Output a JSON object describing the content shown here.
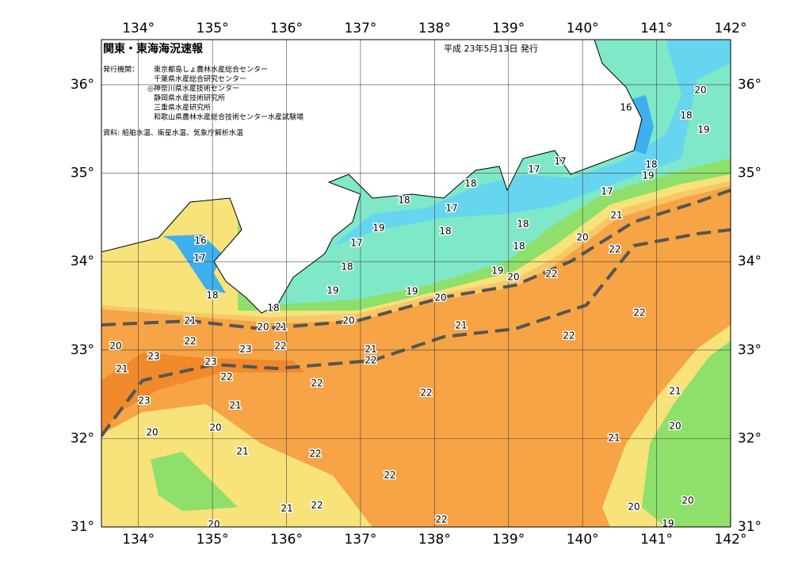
{
  "header": {
    "title": "関東・東海海況速報",
    "date": "平成 23年5月13日 発行",
    "issuer_label": "発行機関：",
    "issuers": [
      "東京都島しょ農林水産総合センター",
      "千葉県水産総合研究センター",
      "◎神奈川県水産技術センター",
      "静岡県水産技術研究所",
      "三重県水産研究所",
      "和歌山県農林水産総合技術センター水産試験場"
    ],
    "source": "資料: 船舶水温、衛星水温、気象庁解析水温"
  },
  "map": {
    "lon_lim": [
      133.5,
      142
    ],
    "lat_lim": [
      31,
      36.51
    ],
    "lon_ticks": [
      {
        "value": 134,
        "label": "134°"
      },
      {
        "value": 135,
        "label": "135°"
      },
      {
        "value": 136,
        "label": "136°"
      },
      {
        "value": 137,
        "label": "137°"
      },
      {
        "value": 138,
        "label": "138°"
      },
      {
        "value": 139,
        "label": "139°"
      },
      {
        "value": 140,
        "label": "140°"
      },
      {
        "value": 141,
        "label": "141°"
      },
      {
        "value": 142,
        "label": "142°"
      }
    ],
    "lat_ticks": [
      {
        "value": 31,
        "label": "31°"
      },
      {
        "value": 32,
        "label": "32°"
      },
      {
        "value": 33,
        "label": "33°"
      },
      {
        "value": 34,
        "label": "34°"
      },
      {
        "value": 35,
        "label": "35°"
      },
      {
        "value": 36,
        "label": "36°"
      }
    ],
    "contour_labels": [
      16,
      20,
      18,
      19,
      17,
      18,
      19,
      17,
      17,
      18,
      18,
      17,
      21,
      18,
      18,
      19,
      17,
      20,
      18,
      16,
      22,
      17,
      18,
      19,
      20,
      22,
      19,
      19,
      20,
      18,
      18,
      22,
      20,
      21,
      20,
      21,
      21,
      22,
      20,
      22,
      23,
      22,
      21,
      22,
      23,
      23,
      21,
      22,
      22,
      21,
      22,
      23,
      21,
      20,
      20,
      20,
      21,
      21,
      22,
      22,
      22,
      21,
      20,
      20,
      22,
      20,
      19
    ]
  }
}
